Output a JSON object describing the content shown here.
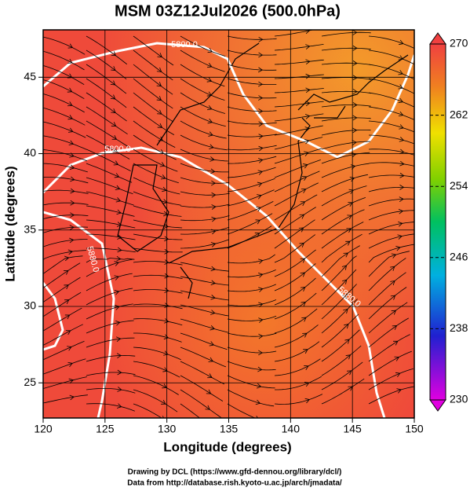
{
  "chart_data": {
    "type": "map",
    "title": "MSM 03Z12Jul2026 (500.0hPa)",
    "xlabel": "Longitude (degrees)",
    "ylabel": "Latitude  (degrees)",
    "xlim": [
      120,
      150
    ],
    "ylim": [
      22.7,
      48.1
    ],
    "xticks": [
      120,
      125,
      130,
      135,
      140,
      145,
      150
    ],
    "yticks": [
      25,
      30,
      35,
      40,
      45
    ],
    "grid": true,
    "contour_labels": [
      "5800.0",
      "5800.0",
      "5880.0",
      "5880.0"
    ],
    "colorbar": {
      "lim": [
        230,
        270
      ],
      "ticks": [
        230,
        238,
        246,
        254,
        262,
        270
      ]
    },
    "credits": [
      "Drawing by DCL (https://www.gfd-dennou.org/library/dcl/)",
      "Data from http://database.rish.kyoto-u.ac.jp/arch/jmadata/"
    ]
  }
}
